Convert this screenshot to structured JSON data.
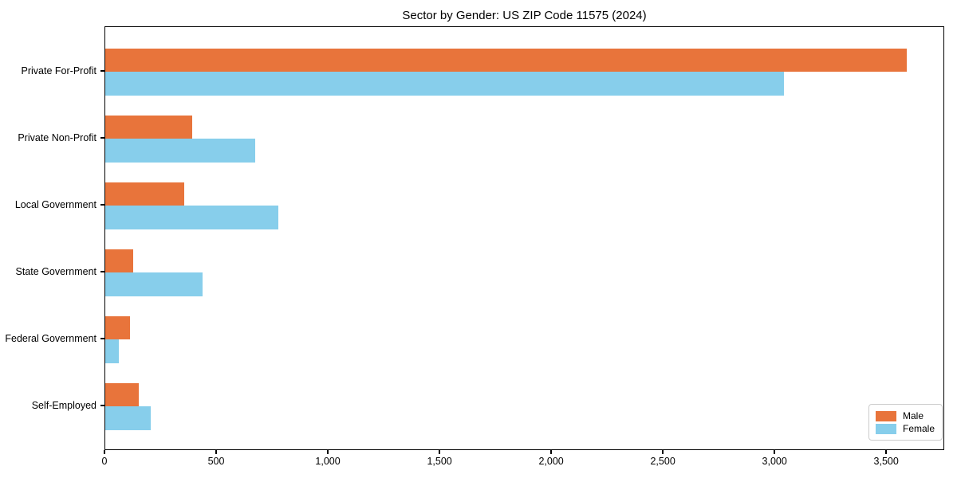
{
  "chart_data": {
    "type": "bar",
    "orientation": "horizontal",
    "title": "Sector by Gender: US ZIP Code 11575 (2024)",
    "categories": [
      "Private For-Profit",
      "Private Non-Profit",
      "Local Government",
      "State Government",
      "Federal Government",
      "Self-Employed"
    ],
    "series": [
      {
        "name": "Male",
        "color": "#e8743b",
        "values": [
          3590,
          390,
          355,
          125,
          110,
          150
        ]
      },
      {
        "name": "Female",
        "color": "#87ceeb",
        "values": [
          3040,
          670,
          775,
          435,
          60,
          205
        ]
      }
    ],
    "xlabel": "",
    "ylabel": "",
    "xlim": [
      0,
      3760
    ],
    "xticks": [
      0,
      500,
      1000,
      1500,
      2000,
      2500,
      3000,
      3500
    ],
    "xtick_labels": [
      "0",
      "500",
      "1,000",
      "1,500",
      "2,000",
      "2,500",
      "3,000",
      "3,500"
    ],
    "grid": false,
    "legend_position": "lower right",
    "background_color": "#ffffff",
    "spine_color": "#000000"
  }
}
